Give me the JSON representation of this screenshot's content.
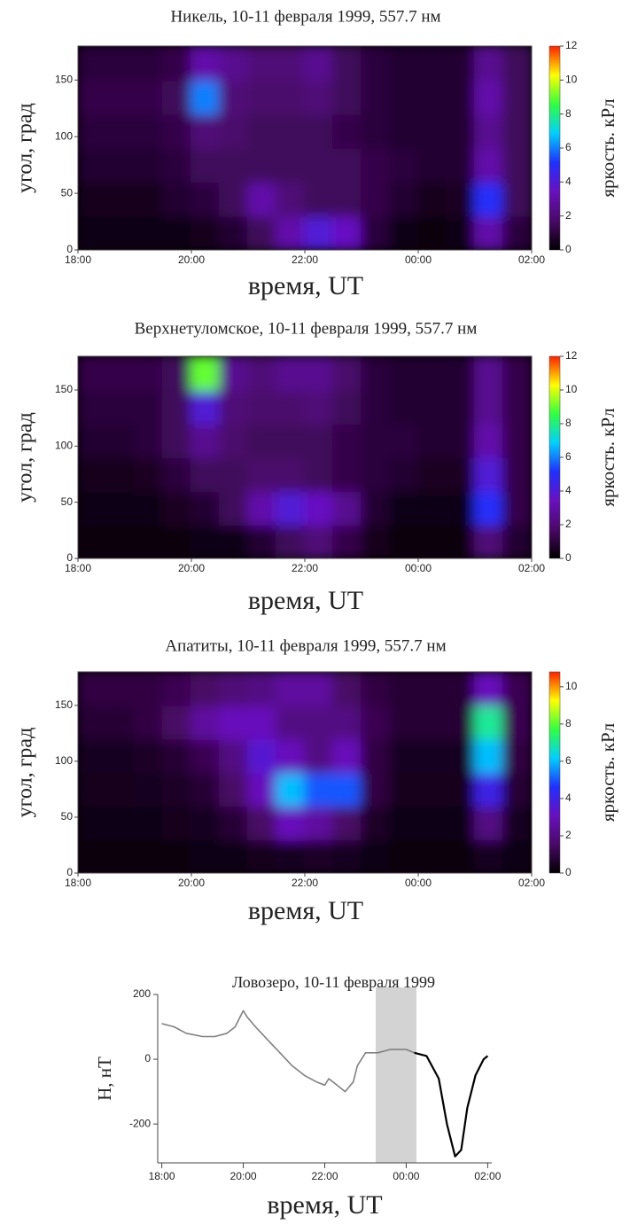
{
  "chart_data": [
    {
      "type": "heatmap",
      "title": "Никель, 10-11 февраля 1999, 557.7 нм",
      "x_label": "время, UT",
      "y_label": "угол, град",
      "colorbar_label": "яркость. кРл",
      "xlim": [
        18,
        26
      ],
      "xticks": [
        {
          "value": 18,
          "label": "18:00"
        },
        {
          "value": 20,
          "label": "20:00"
        },
        {
          "value": 22,
          "label": "22:00"
        },
        {
          "value": 24,
          "label": "00:00"
        },
        {
          "value": 26,
          "label": "02:00"
        }
      ],
      "ylim": [
        0,
        180
      ],
      "yticks": [
        0,
        50,
        100,
        150
      ],
      "clim": [
        0,
        12
      ],
      "cticks": [
        0,
        2,
        4,
        6,
        8,
        10,
        12
      ],
      "colormap": [
        "#000000",
        "#4a0868",
        "#6a10c0",
        "#2030ff",
        "#00d0ff",
        "#30ff40",
        "#ffff00",
        "#ff2000"
      ],
      "x": [
        18.25,
        18.75,
        19.25,
        19.75,
        20.25,
        20.75,
        21.25,
        21.75,
        22.25,
        22.75,
        23.25,
        23.75,
        24.25,
        24.75,
        25.25,
        25.75
      ],
      "y": [
        15,
        45,
        75,
        105,
        135,
        165
      ],
      "z": [
        [
          0.3,
          0.3,
          0.3,
          0.3,
          0.5,
          0.8,
          1.5,
          3,
          4,
          3.5,
          1,
          0.3,
          0.2,
          0.3,
          3,
          1
        ],
        [
          0.5,
          0.5,
          0.5,
          0.8,
          1,
          1.5,
          3,
          2,
          1.5,
          1.5,
          1.2,
          0.8,
          0.5,
          0.6,
          5,
          1.5
        ],
        [
          0.8,
          0.8,
          0.8,
          1,
          1.5,
          1.5,
          1.5,
          1.5,
          1.5,
          1.5,
          1.2,
          1,
          0.8,
          0.8,
          3,
          1.5
        ],
        [
          1,
          1,
          1,
          1.2,
          2,
          1.8,
          1.5,
          1.5,
          1.5,
          1.2,
          1,
          0.8,
          0.8,
          0.8,
          2.5,
          1.5
        ],
        [
          1.2,
          1.2,
          1.2,
          1.5,
          6,
          2,
          1.8,
          1.8,
          2,
          1.5,
          1,
          0.8,
          0.8,
          0.8,
          3,
          1.5
        ],
        [
          1,
          1,
          1,
          1.2,
          3,
          2.5,
          2,
          2,
          2.5,
          1.5,
          1,
          0.8,
          0.8,
          0.8,
          2.5,
          1.5
        ]
      ]
    },
    {
      "type": "heatmap",
      "title": "Верхнетуломское, 10-11 февраля 1999, 557.7 нм",
      "x_label": "время, UT",
      "y_label": "угол, град",
      "colorbar_label": "яркость. кРл",
      "xlim": [
        18,
        26
      ],
      "xticks": [
        {
          "value": 18,
          "label": "18:00"
        },
        {
          "value": 20,
          "label": "20:00"
        },
        {
          "value": 22,
          "label": "22:00"
        },
        {
          "value": 24,
          "label": "00:00"
        },
        {
          "value": 26,
          "label": "02:00"
        }
      ],
      "ylim": [
        0,
        180
      ],
      "yticks": [
        0,
        50,
        100,
        150
      ],
      "clim": [
        0,
        12
      ],
      "cticks": [
        0,
        2,
        4,
        6,
        8,
        10,
        12
      ],
      "colormap": [
        "#000000",
        "#4a0868",
        "#6a10c0",
        "#2030ff",
        "#00d0ff",
        "#30ff40",
        "#ffff00",
        "#ff2000"
      ],
      "x": [
        18.25,
        18.75,
        19.25,
        19.75,
        20.25,
        20.75,
        21.25,
        21.75,
        22.25,
        22.75,
        23.25,
        23.75,
        24.25,
        24.75,
        25.25,
        25.75
      ],
      "y": [
        15,
        45,
        75,
        105,
        135,
        165
      ],
      "z": [
        [
          0.2,
          0.2,
          0.2,
          0.2,
          0.3,
          0.4,
          0.8,
          1.5,
          2,
          1.2,
          0.5,
          0.2,
          0.2,
          0.2,
          2,
          0.8
        ],
        [
          0.3,
          0.3,
          0.4,
          0.6,
          0.8,
          1.5,
          3,
          4,
          3.5,
          2.5,
          0.8,
          0.4,
          0.3,
          0.4,
          5,
          1.2
        ],
        [
          0.5,
          0.5,
          0.6,
          1,
          1.5,
          1.5,
          1.8,
          1.8,
          1.5,
          1.2,
          1,
          0.8,
          0.6,
          0.6,
          4,
          1.2
        ],
        [
          0.8,
          0.8,
          1,
          1.5,
          2.5,
          1.8,
          1.5,
          1.5,
          1.5,
          1.2,
          1,
          1,
          0.8,
          0.8,
          3,
          1.2
        ],
        [
          1,
          1,
          1,
          1.5,
          4,
          2,
          1.8,
          1.8,
          2,
          1.5,
          1,
          0.8,
          0.8,
          0.8,
          2.5,
          1.2
        ],
        [
          1.2,
          1.2,
          1.2,
          1.5,
          9,
          2.5,
          2,
          2.5,
          2.5,
          1.8,
          1,
          0.8,
          0.8,
          0.8,
          2.5,
          1.2
        ]
      ]
    },
    {
      "type": "heatmap",
      "title": "Апатиты, 10-11 февраля 1999, 557.7 нм",
      "x_label": "время, UT",
      "y_label": "угол, град",
      "colorbar_label": "яркость. кРл",
      "xlim": [
        18,
        26
      ],
      "xticks": [
        {
          "value": 18,
          "label": "18:00"
        },
        {
          "value": 20,
          "label": "20:00"
        },
        {
          "value": 22,
          "label": "22:00"
        },
        {
          "value": 24,
          "label": "00:00"
        },
        {
          "value": 26,
          "label": "02:00"
        }
      ],
      "ylim": [
        0,
        180
      ],
      "yticks": [
        0,
        50,
        100,
        150
      ],
      "clim": [
        0,
        10.8
      ],
      "cticks": [
        0,
        2,
        4,
        6,
        8,
        10
      ],
      "colormap": [
        "#000000",
        "#4a0868",
        "#6a10c0",
        "#2030ff",
        "#00d0ff",
        "#30ff40",
        "#ffff00",
        "#ff2000"
      ],
      "x": [
        18.25,
        18.75,
        19.25,
        19.75,
        20.25,
        20.75,
        21.25,
        21.75,
        22.25,
        22.75,
        23.25,
        23.75,
        24.25,
        24.75,
        25.25,
        25.75
      ],
      "y": [
        15,
        45,
        75,
        105,
        135,
        165
      ],
      "z": [
        [
          0.2,
          0.2,
          0.2,
          0.2,
          0.3,
          0.3,
          0.4,
          0.5,
          0.6,
          0.5,
          0.3,
          0.2,
          0.2,
          0.2,
          0.5,
          0.3
        ],
        [
          0.3,
          0.3,
          0.3,
          0.4,
          0.5,
          0.8,
          1.5,
          3,
          2.5,
          1.5,
          0.6,
          0.3,
          0.3,
          0.3,
          2,
          0.5
        ],
        [
          0.4,
          0.4,
          0.5,
          0.6,
          0.8,
          1.5,
          3,
          6,
          5,
          5,
          1,
          0.4,
          0.4,
          0.4,
          4,
          0.8
        ],
        [
          0.5,
          0.5,
          0.6,
          0.8,
          1.2,
          2,
          3.5,
          3,
          2,
          3,
          1,
          0.5,
          0.5,
          0.5,
          6,
          1
        ],
        [
          0.8,
          0.8,
          1,
          1.5,
          2.5,
          3,
          3,
          2,
          2,
          2,
          1.2,
          0.8,
          0.8,
          0.8,
          7,
          1.2
        ],
        [
          1,
          1,
          1,
          1.2,
          1.5,
          1.8,
          2,
          2.5,
          2.5,
          1.5,
          1,
          0.8,
          0.8,
          0.8,
          3,
          1.2
        ]
      ]
    },
    {
      "type": "line",
      "title": "Ловозеро, 10-11 февраля 1999",
      "x_label": "время, UT",
      "y_label": "H, нТ",
      "xlim": [
        17.9,
        26.1
      ],
      "xticks": [
        {
          "value": 18,
          "label": "18:00"
        },
        {
          "value": 20,
          "label": "20:00"
        },
        {
          "value": 22,
          "label": "22:00"
        },
        {
          "value": 24,
          "label": "00:00"
        },
        {
          "value": 26,
          "label": "02:00"
        }
      ],
      "ylim": [
        -320,
        200
      ],
      "yticks": [
        -200,
        0,
        200
      ],
      "highlight_span": [
        23.25,
        24.25
      ],
      "highlight_color": "#d3d3d3",
      "series": [
        {
          "color": "#808080",
          "x": [
            18.0,
            18.3,
            18.6,
            19.0,
            19.3,
            19.6,
            19.8,
            20.0,
            20.1,
            20.3,
            20.6,
            20.9,
            21.2,
            21.5,
            21.8,
            22.0,
            22.1,
            22.3,
            22.5,
            22.7,
            22.8,
            23.0,
            23.3,
            23.6,
            24.0,
            24.2
          ],
          "values": [
            110,
            100,
            80,
            70,
            70,
            80,
            100,
            150,
            130,
            100,
            60,
            20,
            -20,
            -50,
            -70,
            -80,
            -60,
            -80,
            -100,
            -70,
            -20,
            20,
            20,
            30,
            30,
            20
          ]
        },
        {
          "color": "#000000",
          "x": [
            24.2,
            24.5,
            24.8,
            25.0,
            25.2,
            25.35,
            25.5,
            25.7,
            25.9,
            26.0
          ],
          "values": [
            20,
            10,
            -60,
            -200,
            -300,
            -280,
            -150,
            -50,
            0,
            10
          ]
        }
      ]
    }
  ]
}
